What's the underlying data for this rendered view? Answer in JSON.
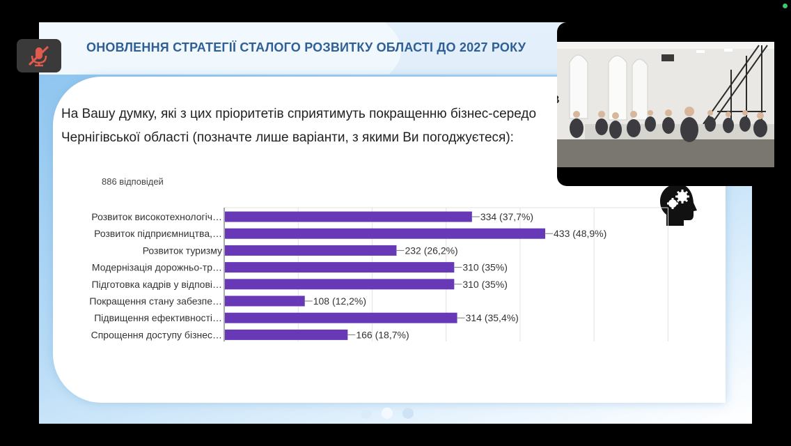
{
  "slide": {
    "title": "ОНОВЛЕННЯ СТРАТЕГІЇ СТАЛОГО РОЗВИТКУ ОБЛАСТІ ДО 2027 РОКУ",
    "question_line1": "На Вашу думку, які з цих пріоритетів сприятимуть покращенню бізнес-середо",
    "question_line2": "Чернігівської області (позначте лише варіанти, з якими Ви погоджуєтеся):",
    "response_count": "886 відповідей",
    "accent_color": "#6739b7"
  },
  "chart_data": {
    "type": "bar",
    "orientation": "horizontal",
    "categories": [
      "Розвиток високотехнологіч…",
      "Розвиток підприємництва,…",
      "Розвиток туризму",
      "Модернізація дорожньо-тр…",
      "Підготовка кадрів у відпові…",
      "Покращення стану забезпе…",
      "Підвищення ефективності…",
      "Спрощення доступу бізнес…"
    ],
    "values": [
      334,
      433,
      232,
      310,
      310,
      108,
      314,
      166
    ],
    "data_labels": [
      "334 (37,7%)",
      "433 (48,9%)",
      "232 (26,2%)",
      "310 (35%)",
      "310 (35%)",
      "108 (12,2%)",
      "314 (35,4%)",
      "166 (18,7%)"
    ],
    "xlim": [
      0,
      600
    ],
    "grid": true,
    "color": "#6739b7"
  },
  "video": {
    "caption_partial": "В"
  },
  "icons": {
    "mute": "microphone-muted-icon",
    "brain": "head-gears-icon"
  }
}
